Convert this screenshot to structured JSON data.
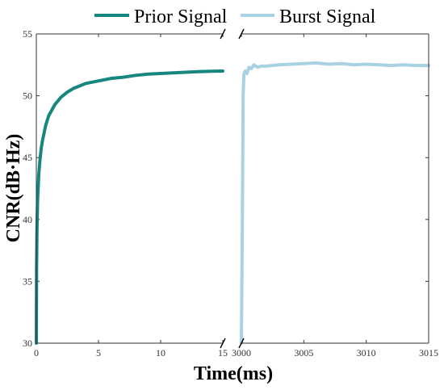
{
  "chart_data": {
    "type": "line",
    "xlabel": "Time(ms)",
    "ylabel": "CNR(dB·Hz)",
    "ylim": [
      30,
      55
    ],
    "yticks": [
      30,
      35,
      40,
      45,
      50,
      55
    ],
    "grid": false,
    "legend_position": "top",
    "axis_break": true,
    "panels": [
      {
        "xlim": [
          0,
          15
        ],
        "xticks": [
          0,
          5,
          10,
          15
        ]
      },
      {
        "xlim": [
          3000,
          3015
        ],
        "xticks": [
          3000,
          3005,
          3010,
          3015
        ]
      }
    ],
    "series": [
      {
        "name": "Prior Signal",
        "color": "#17867f",
        "panel": 0,
        "points": [
          [
            0,
            30
          ],
          [
            0.02,
            36
          ],
          [
            0.05,
            39
          ],
          [
            0.1,
            41.5
          ],
          [
            0.2,
            43.7
          ],
          [
            0.3,
            44.9
          ],
          [
            0.4,
            45.8
          ],
          [
            0.5,
            46.4
          ],
          [
            0.75,
            47.6
          ],
          [
            1,
            48.4
          ],
          [
            1.5,
            49.3
          ],
          [
            2,
            49.9
          ],
          [
            2.5,
            50.3
          ],
          [
            3,
            50.6
          ],
          [
            4,
            51
          ],
          [
            5,
            51.2
          ],
          [
            6,
            51.4
          ],
          [
            7,
            51.5
          ],
          [
            8,
            51.65
          ],
          [
            9,
            51.75
          ],
          [
            10,
            51.8
          ],
          [
            11,
            51.85
          ],
          [
            12,
            51.9
          ],
          [
            13,
            51.95
          ],
          [
            14,
            51.98
          ],
          [
            15,
            52
          ]
        ]
      },
      {
        "name": "Burst Signal",
        "color": "#a8d1e3",
        "panel": 1,
        "points": [
          [
            3000,
            30
          ],
          [
            3000.08,
            40
          ],
          [
            3000.14,
            50
          ],
          [
            3000.2,
            51.7
          ],
          [
            3000.3,
            52
          ],
          [
            3000.45,
            51.8
          ],
          [
            3000.6,
            52.3
          ],
          [
            3000.8,
            52.2
          ],
          [
            3001,
            52.5
          ],
          [
            3001.3,
            52.3
          ],
          [
            3001.6,
            52.4
          ],
          [
            3002,
            52.4
          ],
          [
            3003,
            52.5
          ],
          [
            3004,
            52.55
          ],
          [
            3005,
            52.6
          ],
          [
            3006,
            52.65
          ],
          [
            3007,
            52.55
          ],
          [
            3008,
            52.6
          ],
          [
            3009,
            52.5
          ],
          [
            3010,
            52.55
          ],
          [
            3011,
            52.5
          ],
          [
            3012,
            52.45
          ],
          [
            3013,
            52.5
          ],
          [
            3014,
            52.45
          ],
          [
            3015,
            52.45
          ]
        ]
      }
    ]
  }
}
